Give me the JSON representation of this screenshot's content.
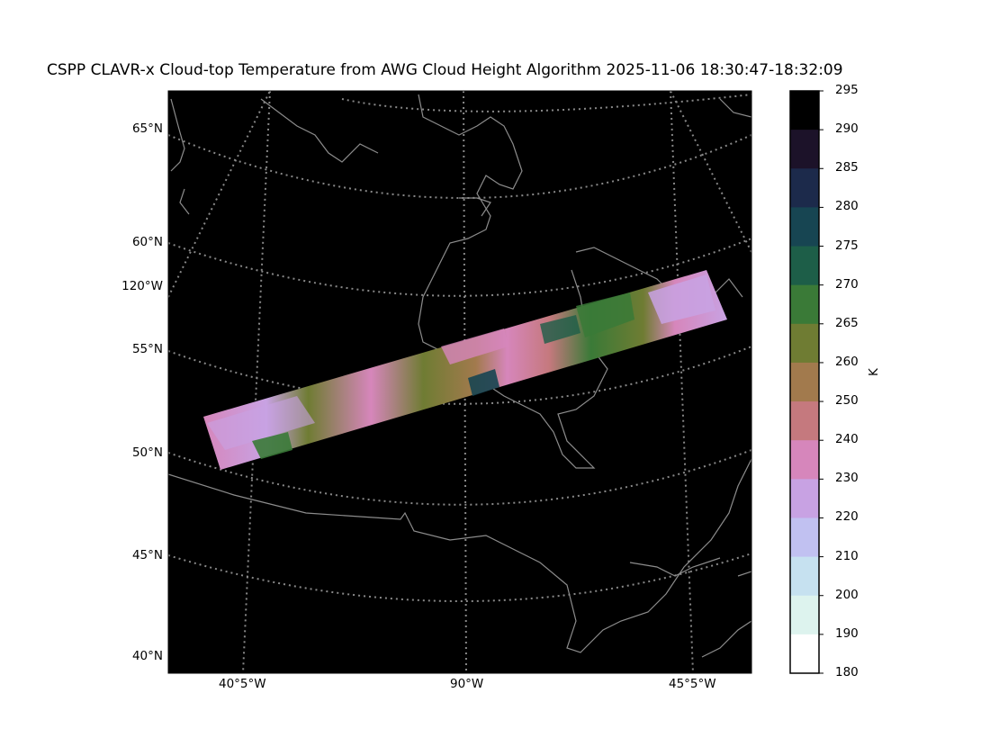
{
  "title": "CSPP CLAVR-x Cloud-top Temperature from AWG Cloud Height Algorithm 2025-11-06 18:30:47-18:32:09",
  "map": {
    "lat_labels": [
      "65°N",
      "60°N",
      "55°N",
      "50°N",
      "45°N",
      "40°N"
    ],
    "left_lon_label": "120°W",
    "bottom_lon_labels": [
      "40°5°W",
      "90°W",
      "45°5°W"
    ],
    "background": "#000000",
    "grid_color": "#888888",
    "coast_color": "#8c8c8c"
  },
  "colorbar": {
    "unit": "K",
    "ticks": [
      "295",
      "290",
      "285",
      "280",
      "275",
      "270",
      "265",
      "260",
      "250",
      "240",
      "230",
      "220",
      "210",
      "200",
      "190",
      "180"
    ],
    "colors": [
      "#000000",
      "#1c1229",
      "#1c2a4b",
      "#174552",
      "#1d5e48",
      "#3a7a37",
      "#6f7c33",
      "#a27a4d",
      "#c5797e",
      "#d686bb",
      "#c8a2e3",
      "#c1c1f1",
      "#c6e1f0",
      "#ddf3ee",
      "#ffffff"
    ]
  },
  "chart_data": {
    "type": "heatmap",
    "title": "CSPP CLAVR-x Cloud-top Temperature from AWG Cloud Height Algorithm 2025-11-06 18:30:47-18:32:09",
    "colorbar_label": "K",
    "colorbar_range": [
      180,
      295
    ],
    "colorbar_boundaries": [
      180,
      190,
      200,
      210,
      220,
      230,
      240,
      250,
      260,
      265,
      270,
      275,
      280,
      285,
      290,
      295
    ]
  }
}
